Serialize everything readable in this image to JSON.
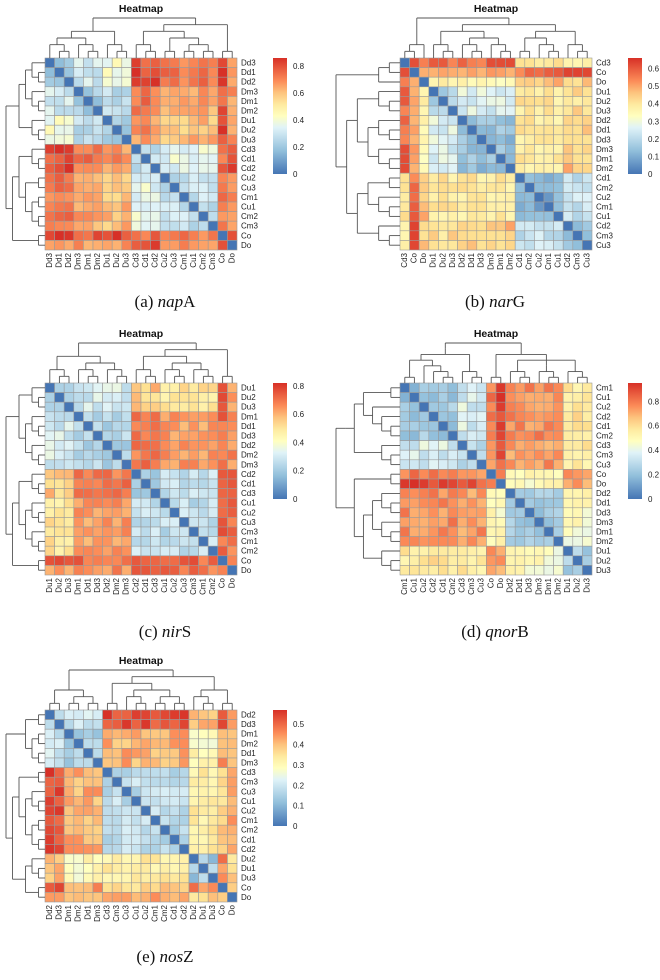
{
  "chart_data": [
    {
      "type": "heatmap",
      "id": "a",
      "title": "Heatmap",
      "caption_prefix": "(a) ",
      "caption_gene_italic": "nap",
      "caption_gene_suffix": "A",
      "labels": [
        "Dd3",
        "Dd1",
        "Dd2",
        "Dm3",
        "Dm1",
        "Dm2",
        "Du1",
        "Du2",
        "Du3",
        "Cd3",
        "Cd1",
        "Cd2",
        "Cu2",
        "Cu3",
        "Cm1",
        "Cu1",
        "Cm2",
        "Cm3",
        "Co",
        "Do"
      ],
      "colorbar": {
        "min": 0,
        "max": 0.86,
        "ticks": [
          0,
          0.2,
          0.4,
          0.6,
          0.8
        ],
        "tick_labels": [
          "0",
          "0.2",
          "0.4",
          "0.6",
          "0.8"
        ]
      },
      "groups": [
        [
          0,
          3
        ],
        [
          3,
          6
        ],
        [
          6,
          9
        ],
        [
          9,
          12
        ],
        [
          12,
          18
        ],
        [
          18,
          19
        ],
        [
          19,
          20
        ]
      ],
      "group_matrix": [
        [
          0.22,
          0.32,
          0.4,
          0.8,
          0.72,
          0.82,
          0.7
        ],
        [
          0.32,
          0.22,
          0.28,
          0.72,
          0.64,
          0.78,
          0.68
        ],
        [
          0.4,
          0.28,
          0.2,
          0.68,
          0.62,
          0.82,
          0.66
        ],
        [
          0.8,
          0.72,
          0.68,
          0.28,
          0.36,
          0.74,
          0.82
        ],
        [
          0.72,
          0.64,
          0.62,
          0.36,
          0.28,
          0.7,
          0.7
        ],
        [
          0.82,
          0.78,
          0.82,
          0.74,
          0.7,
          0,
          0.84
        ],
        [
          0.7,
          0.68,
          0.66,
          0.82,
          0.7,
          0.84,
          0
        ]
      ],
      "col_tree": [
        [
          [
            [
              0,
              [
                1,
                2
              ]
            ],
            [
              3,
              [
                4,
                5
              ]
            ]
          ],
          [
            6,
            [
              7,
              8
            ]
          ]
        ],
        [
          [
            [
              9,
              [
                10,
                11
              ]
            ],
            [
              [
                12,
                13
              ],
              [
                [
                  14,
                  15
                ],
                [
                  16,
                  17
                ]
              ]
            ]
          ],
          [
            18,
            19
          ]
        ]
      ],
      "row_tree": [
        [
          [
            [
              0,
              [
                1,
                2
              ]
            ],
            [
              3,
              [
                4,
                5
              ]
            ]
          ],
          [
            6,
            [
              7,
              8
            ]
          ]
        ],
        [
          [
            [
              9,
              [
                10,
                11
              ]
            ],
            [
              [
                12,
                13
              ],
              [
                [
                  14,
                  15
                ],
                [
                  16,
                  17
                ]
              ]
            ]
          ],
          [
            18,
            19
          ]
        ]
      ]
    },
    {
      "type": "heatmap",
      "id": "b",
      "title": "Heatmap",
      "caption_prefix": "(b) ",
      "caption_gene_italic": "nar",
      "caption_gene_suffix": "G",
      "labels": [
        "Cd3",
        "Co",
        "Do",
        "Du1",
        "Du2",
        "Du3",
        "Dd2",
        "Dd1",
        "Dd3",
        "Dm3",
        "Dm1",
        "Dm2",
        "Cd1",
        "Cm2",
        "Cu2",
        "Cm1",
        "Cu1",
        "Cd2",
        "Cm3",
        "Cu3"
      ],
      "colorbar": {
        "min": 0,
        "max": 0.66,
        "ticks": [
          0,
          0.1,
          0.2,
          0.3,
          0.4,
          0.5,
          0.6
        ],
        "tick_labels": [
          "0",
          "0.1",
          "0.2",
          "0.3",
          "0.4",
          "0.5",
          "0.6"
        ]
      },
      "groups": [
        [
          0,
          1
        ],
        [
          1,
          2
        ],
        [
          2,
          3
        ],
        [
          3,
          6
        ],
        [
          6,
          12
        ],
        [
          12,
          17
        ],
        [
          17,
          20
        ]
      ],
      "group_matrix": [
        [
          0,
          0.64,
          0.56,
          0.56,
          0.58,
          0.42,
          0.34
        ],
        [
          0.64,
          0,
          0.46,
          0.46,
          0.48,
          0.56,
          0.6
        ],
        [
          0.56,
          0.46,
          0,
          0.4,
          0.36,
          0.46,
          0.46
        ],
        [
          0.56,
          0.46,
          0.4,
          0.16,
          0.26,
          0.4,
          0.42
        ],
        [
          0.58,
          0.48,
          0.36,
          0.26,
          0.14,
          0.4,
          0.46
        ],
        [
          0.42,
          0.56,
          0.46,
          0.4,
          0.4,
          0.1,
          0.22
        ],
        [
          0.34,
          0.6,
          0.46,
          0.42,
          0.46,
          0.22,
          0.14
        ]
      ],
      "col_tree": [
        [
          [
            0,
            1
          ],
          2
        ],
        [
          [
            [
              3,
              [
                4,
                5
              ]
            ],
            [
              [
                6,
                [
                  7,
                  8
                ]
              ],
              [
                9,
                [
                  10,
                  11
                ]
              ]
            ]
          ],
          [
            [
              [
                12,
                13
              ],
              [
                14,
                [
                  15,
                  16
                ]
              ]
            ],
            [
              17,
              [
                18,
                19
              ]
            ]
          ]
        ]
      ],
      "row_tree": [
        [
          [
            0,
            1
          ],
          2
        ],
        [
          [
            [
              3,
              [
                4,
                5
              ]
            ],
            [
              [
                6,
                [
                  7,
                  8
                ]
              ],
              [
                9,
                [
                  10,
                  11
                ]
              ]
            ]
          ],
          [
            [
              [
                12,
                13
              ],
              [
                14,
                [
                  15,
                  16
                ]
              ]
            ],
            [
              17,
              [
                18,
                19
              ]
            ]
          ]
        ]
      ]
    },
    {
      "type": "heatmap",
      "id": "c",
      "title": "Heatmap",
      "caption_prefix": "(c) ",
      "caption_gene_italic": "nir",
      "caption_gene_suffix": "S",
      "labels": [
        "Du1",
        "Du2",
        "Du3",
        "Dm1",
        "Dd1",
        "Dd3",
        "Dd2",
        "Dm2",
        "Dm3",
        "Cd2",
        "Cd1",
        "Cd3",
        "Cu1",
        "Cu2",
        "Cu3",
        "Cm3",
        "Cm1",
        "Cm2",
        "Co",
        "Do"
      ],
      "colorbar": {
        "min": 0,
        "max": 0.82,
        "ticks": [
          0,
          0.2,
          0.4,
          0.6,
          0.8
        ],
        "tick_labels": [
          "0",
          "0.2",
          "0.4",
          "0.6",
          "0.8"
        ]
      },
      "groups": [
        [
          0,
          3
        ],
        [
          3,
          9
        ],
        [
          9,
          12
        ],
        [
          12,
          18
        ],
        [
          18,
          19
        ],
        [
          19,
          20
        ]
      ],
      "group_matrix": [
        [
          0.24,
          0.3,
          0.56,
          0.5,
          0.76,
          0.64
        ],
        [
          0.3,
          0.24,
          0.7,
          0.64,
          0.72,
          0.66
        ],
        [
          0.56,
          0.7,
          0.22,
          0.28,
          0.76,
          0.7
        ],
        [
          0.5,
          0.64,
          0.28,
          0.26,
          0.72,
          0.7
        ],
        [
          0.76,
          0.72,
          0.76,
          0.72,
          0,
          0.68
        ],
        [
          0.64,
          0.66,
          0.7,
          0.7,
          0.68,
          0
        ]
      ],
      "col_tree": [
        [
          [
            0,
            [
              1,
              2
            ]
          ],
          [
            [
              3,
              [
                4,
                5
              ]
            ],
            [
              6,
              [
                7,
                8
              ]
            ]
          ]
        ],
        [
          [
            [
              9,
              [
                10,
                11
              ]
            ],
            [
              [
                12,
                [
                  13,
                  14
                ]
              ],
              [
                15,
                [
                  16,
                  17
                ]
              ]
            ]
          ],
          [
            18,
            19
          ]
        ]
      ],
      "row_tree": [
        [
          [
            0,
            [
              1,
              2
            ]
          ],
          [
            [
              3,
              [
                4,
                5
              ]
            ],
            [
              6,
              [
                7,
                8
              ]
            ]
          ]
        ],
        [
          [
            [
              9,
              [
                10,
                11
              ]
            ],
            [
              [
                12,
                [
                  13,
                  14
                ]
              ],
              [
                15,
                [
                  16,
                  17
                ]
              ]
            ]
          ],
          [
            18,
            19
          ]
        ]
      ]
    },
    {
      "type": "heatmap",
      "id": "d",
      "title": "Heatmap",
      "caption_prefix": "(d) ",
      "caption_gene_italic": "qnor",
      "caption_gene_suffix": "B",
      "labels": [
        "Cm1",
        "Cu1",
        "Cu2",
        "Cd2",
        "Cd1",
        "Cm2",
        "Cd3",
        "Cm3",
        "Cu3",
        "Co",
        "Do",
        "Dd2",
        "Dd1",
        "Dd3",
        "Dm3",
        "Dm1",
        "Dm2",
        "Du1",
        "Du2",
        "Du3"
      ],
      "colorbar": {
        "min": 0,
        "max": 0.95,
        "ticks": [
          0,
          0.2,
          0.4,
          0.6,
          0.8
        ],
        "tick_labels": [
          "0",
          "0.2",
          "0.4",
          "0.6",
          "0.8"
        ]
      },
      "groups": [
        [
          0,
          6
        ],
        [
          6,
          9
        ],
        [
          9,
          10
        ],
        [
          10,
          11
        ],
        [
          11,
          17
        ],
        [
          17,
          20
        ]
      ],
      "group_matrix": [
        [
          0.22,
          0.36,
          0.8,
          0.92,
          0.76,
          0.58
        ],
        [
          0.36,
          0.28,
          0.72,
          0.86,
          0.74,
          0.56
        ],
        [
          0.8,
          0.72,
          0,
          0.76,
          0.52,
          0.76
        ],
        [
          0.92,
          0.86,
          0.76,
          0,
          0.48,
          0.74
        ],
        [
          0.76,
          0.74,
          0.52,
          0.48,
          0.24,
          0.48
        ],
        [
          0.58,
          0.56,
          0.76,
          0.74,
          0.48,
          0.26
        ]
      ],
      "col_tree": [
        [
          [
            [
              [
                0,
                1
              ],
              [
                2,
                [
                  3,
                  [
                    4,
                    5
                  ]
                ]
              ]
            ],
            [
              6,
              [
                7,
                8
              ]
            ]
          ]
        ],
        [
          [
            9,
            10
          ],
          [
            [
              11,
              [
                12,
                13
              ]
            ],
            [
              [
                14,
                [
                  15,
                  16
                ]
              ]
            ],
            [
              17,
              [
                18,
                19
              ]
            ]
          ]
        ]
      ],
      "row_tree": [
        [
          [
            [
              [
                0,
                1
              ],
              [
                2,
                [
                  3,
                  [
                    4,
                    5
                  ]
                ]
              ]
            ],
            [
              6,
              [
                7,
                8
              ]
            ]
          ]
        ],
        [
          [
            9,
            10
          ],
          [
            [
              [
                11,
                [
                  12,
                  13
                ]
              ],
              [
                14,
                [
                  15,
                  16
                ]
              ]
            ],
            [
              17,
              [
                18,
                19
              ]
            ]
          ]
        ]
      ]
    },
    {
      "type": "heatmap",
      "id": "e",
      "title": "Heatmap",
      "caption_prefix": "(e) ",
      "caption_gene_italic": "nos",
      "caption_gene_suffix": "Z",
      "labels": [
        "Dd2",
        "Dd3",
        "Dm1",
        "Dm2",
        "Dd1",
        "Dm3",
        "Cd3",
        "Cm3",
        "Cu3",
        "Cu1",
        "Cu2",
        "Cm1",
        "Cm2",
        "Cd1",
        "Cd2",
        "Du2",
        "Du1",
        "Du3",
        "Co",
        "Do"
      ],
      "colorbar": {
        "min": 0,
        "max": 0.57,
        "ticks": [
          0,
          0.1,
          0.2,
          0.3,
          0.4,
          0.5
        ],
        "tick_labels": [
          "0",
          "0.1",
          "0.2",
          "0.3",
          "0.4",
          "0.5"
        ]
      },
      "groups": [
        [
          0,
          2
        ],
        [
          2,
          6
        ],
        [
          6,
          15
        ],
        [
          15,
          18
        ],
        [
          18,
          19
        ],
        [
          19,
          20
        ]
      ],
      "group_matrix": [
        [
          0.14,
          0.2,
          0.53,
          0.4,
          0.52,
          0.44
        ],
        [
          0.2,
          0.14,
          0.42,
          0.3,
          0.44,
          0.4
        ],
        [
          0.53,
          0.42,
          0.18,
          0.34,
          0.38,
          0.44
        ],
        [
          0.4,
          0.3,
          0.34,
          0.14,
          0.46,
          0.38
        ],
        [
          0.52,
          0.44,
          0.38,
          0.46,
          0,
          0.4
        ],
        [
          0.44,
          0.4,
          0.44,
          0.38,
          0.4,
          0
        ]
      ],
      "col_tree": [
        [
          [
            0,
            1
          ],
          [
            [
              2,
              3
            ],
            [
              4,
              5
            ]
          ]
        ],
        [
          [
            [
              6,
              7
            ],
            [
              [
                8,
                [
                  9,
                  10
                ]
              ],
              [
                [
                  11,
                  12
                ],
                [
                  13,
                  14
                ]
              ]
            ]
          ],
          [
            [
              15,
              [
                16,
                17
              ]
            ],
            [
              18,
              19
            ]
          ]
        ]
      ],
      "row_tree": [
        [
          [
            0,
            1
          ],
          [
            [
              2,
              3
            ],
            [
              4,
              5
            ]
          ]
        ],
        [
          [
            [
              6,
              7
            ],
            [
              [
                8,
                [
                  9,
                  10
                ]
              ],
              [
                [
                  11,
                  12
                ],
                [
                  13,
                  14
                ]
              ]
            ]
          ],
          [
            [
              15,
              [
                16,
                17
              ]
            ],
            [
              18,
              19
            ]
          ]
        ]
      ]
    }
  ]
}
